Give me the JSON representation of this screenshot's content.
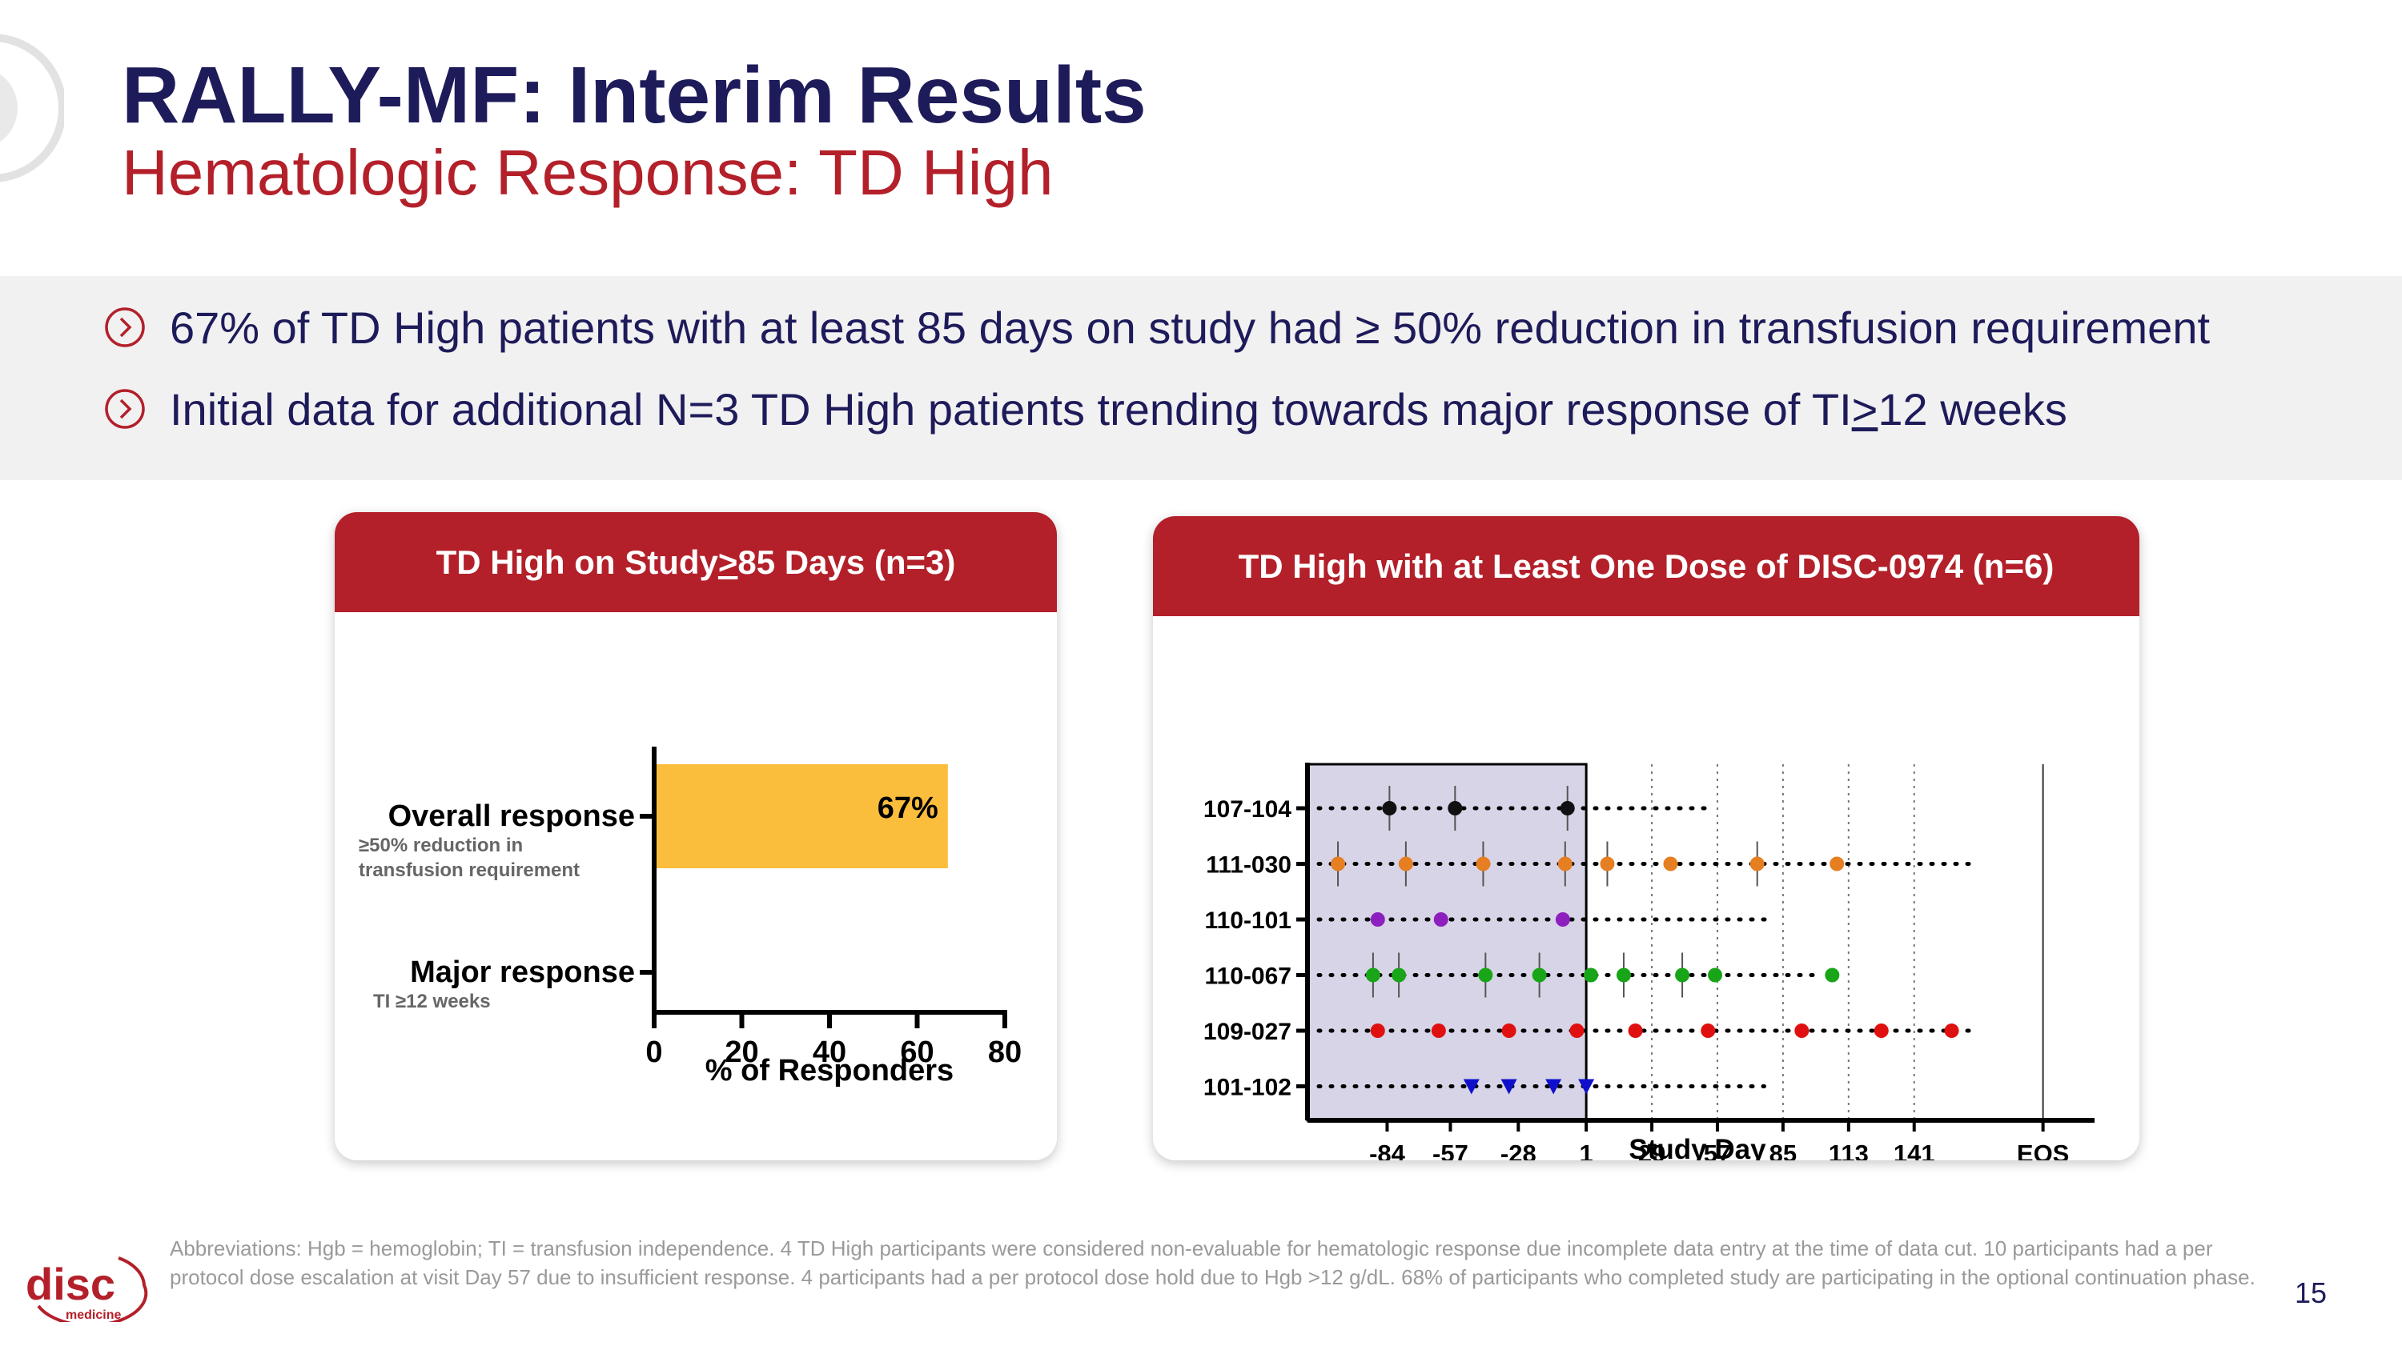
{
  "header": {
    "title": "RALLY-MF: Interim Results",
    "subtitle": "Hematologic Response: TD High"
  },
  "bullets": [
    {
      "pre": "67% of TD High patients with at least 85 days on study had ≥ 50% reduction in transfusion requirement",
      "u": "",
      "post": ""
    },
    {
      "pre": "Initial data for additional N=3 TD High patients trending towards major response of TI",
      "u": ">",
      "post": "12 weeks"
    }
  ],
  "colors": {
    "navy": "#1e1b5a",
    "red": "#b3202a",
    "bar": "#fbbd3c",
    "shade": "#d6d4e6",
    "gray": "#9a9a9a"
  },
  "chart_data": [
    {
      "type": "bar",
      "orientation": "horizontal",
      "title_pre": "TD High on Study ",
      "title_u": ">",
      "title_post": "85 Days (n=3)",
      "categories": [
        {
          "label": "Overall response",
          "sublabel": "≥50% reduction in transfusion requirement",
          "value": 67,
          "value_label": "67%"
        },
        {
          "label": "Major response",
          "sublabel": "TI ≥12 weeks",
          "value": 0,
          "value_label": ""
        }
      ],
      "xlabel": "% of Responders",
      "xticks": [
        0,
        20,
        40,
        60,
        80
      ],
      "xlim": [
        0,
        80
      ]
    },
    {
      "type": "scatter",
      "title": "TD High with at Least One Dose of DISC-0974 (n=6)",
      "xlabel": "Study Day",
      "xticks": [
        "-84",
        "-57",
        "-28",
        "1",
        "29",
        "57",
        "85",
        "113",
        "141",
        "EOS"
      ],
      "xtick_index": [
        -84,
        -57,
        -28,
        1,
        29,
        57,
        85,
        113,
        141,
        196
      ],
      "xlim": [
        -118,
        218
      ],
      "shaded_region": [
        -118,
        1
      ],
      "dashed_guides": [
        29,
        57,
        85,
        113,
        141
      ],
      "eos_line": 196,
      "patients": [
        {
          "id": "107-104",
          "color": "#111111",
          "marker": "circle",
          "line_end": 52,
          "doses": [
            -83,
            -55,
            -7
          ],
          "escalations": [
            -83,
            -55,
            -7
          ]
        },
        {
          "id": "111-030",
          "color": "#e67e22",
          "marker": "circle",
          "line_end": 168,
          "doses": [
            -105,
            -76,
            -43,
            -8,
            10,
            37,
            74,
            108
          ],
          "escalations": [
            -105,
            -76,
            -43,
            -8,
            10,
            74
          ]
        },
        {
          "id": "110-101",
          "color": "#8e1fbf",
          "marker": "circle",
          "line_end": 80,
          "doses": [
            -88,
            -61,
            -9
          ],
          "escalations": []
        },
        {
          "id": "110-067",
          "color": "#18a518",
          "marker": "circle",
          "line_end": 101,
          "doses": [
            -90,
            -79,
            -42,
            -19,
            3,
            17,
            42,
            56,
            106
          ],
          "escalations": [
            -90,
            -79,
            -42,
            -19,
            17,
            42
          ]
        },
        {
          "id": "109-027",
          "color": "#e01010",
          "marker": "circle",
          "line_end": 168,
          "doses": [
            -88,
            -62,
            -32,
            -3,
            22,
            53,
            93,
            127,
            157
          ],
          "escalations": []
        },
        {
          "id": "101-102",
          "color": "#1010cc",
          "marker": "triangle-down",
          "line_end": 77,
          "doses": [
            -48,
            -32,
            -13,
            1
          ],
          "escalations": []
        }
      ]
    }
  ],
  "footnote": "Abbreviations: Hgb = hemoglobin; TI = transfusion independence. 4 TD High participants were considered non-evaluable for hematologic response due incomplete data entry at the time of data cut. 10 participants had a per protocol dose escalation at visit Day 57 due to insufficient response. 4 participants had a per protocol dose hold due to Hgb >12 g/dL. 68% of participants who completed study are participating in the optional continuation phase.",
  "page_number": "15",
  "logo": {
    "name": "disc",
    "tagline": "medicine"
  }
}
